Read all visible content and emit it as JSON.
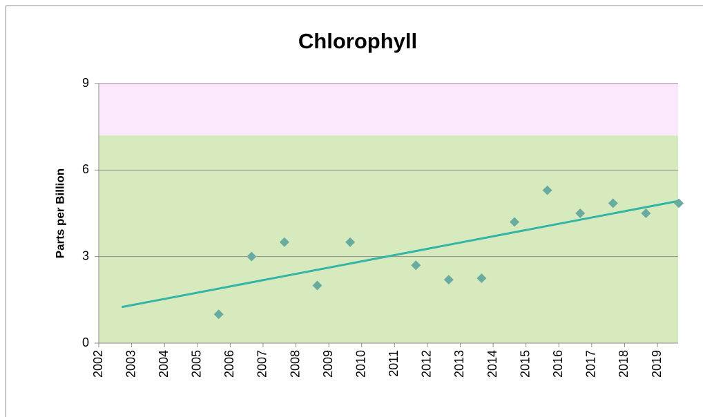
{
  "chart_data": {
    "type": "scatter",
    "title": "Chlorophyll",
    "y_label": "Parts per Billion",
    "x": [
      2005.65,
      2006.65,
      2007.65,
      2008.65,
      2009.65,
      2011.65,
      2012.65,
      2013.65,
      2014.65,
      2015.65,
      2016.65,
      2017.65,
      2018.65,
      2019.65
    ],
    "values": [
      1.0,
      3.0,
      3.5,
      2.0,
      3.5,
      2.7,
      2.2,
      2.25,
      4.2,
      5.3,
      4.5,
      4.85,
      4.5,
      4.85
    ],
    "color": "#6aaba0",
    "trendline": {
      "x": [
        2002.7,
        2019.65
      ],
      "values": [
        1.25,
        4.93
      ],
      "color": "#33b5a5"
    },
    "bands": [
      {
        "from": 0,
        "to": 7.2,
        "color": "#d7eabd"
      },
      {
        "from": 7.2,
        "to": 9,
        "color": "#fce8fc"
      }
    ],
    "xlim": [
      2002,
      2019.63
    ],
    "xticks": [
      2002,
      2003,
      2004,
      2005,
      2006,
      2007,
      2008,
      2009,
      2010,
      2011,
      2012,
      2013,
      2014,
      2015,
      2016,
      2017,
      2018,
      2019
    ],
    "ylim": [
      0,
      9
    ],
    "yticks": [
      0,
      3,
      6,
      9
    ],
    "grid": true
  }
}
